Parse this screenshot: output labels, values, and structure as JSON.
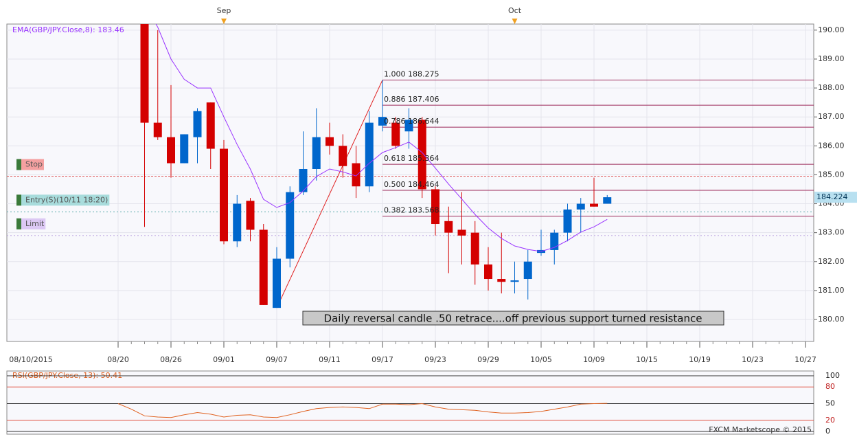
{
  "chart_data": {
    "type": "candlestick",
    "title": "EMA(GBP/JPY.Close,8): 183.46",
    "start_label": "08/10/2015",
    "categories": [
      "08/20",
      null,
      null,
      null,
      "08/26",
      null,
      null,
      null,
      "09/01",
      null,
      null,
      null,
      "09/07",
      null,
      null,
      null,
      "09/11",
      null,
      null,
      null,
      "09/17",
      null,
      null,
      null,
      "09/23",
      null,
      null,
      null,
      "09/29",
      null,
      null,
      null,
      "10/05",
      null,
      null,
      null,
      "10/09",
      null,
      null,
      null,
      "10/15",
      null,
      null,
      null,
      "10/19",
      null,
      null,
      null,
      "10/23",
      null,
      null,
      null,
      "10/27"
    ],
    "months": [
      null,
      null,
      null,
      null,
      null,
      null,
      null,
      null,
      "Sep",
      null,
      null,
      null,
      null,
      null,
      null,
      null,
      null,
      null,
      null,
      null,
      null,
      null,
      null,
      null,
      null,
      null,
      null,
      null,
      null,
      null,
      "Oct",
      null,
      null,
      null,
      null,
      null,
      null,
      null,
      null,
      null,
      null,
      null,
      null,
      null,
      null,
      null,
      null,
      null,
      null,
      null,
      null,
      null,
      null
    ],
    "ohlc": {
      "up_color": "#0066cc",
      "down_color": "#d40000",
      "open": [
        null,
        null,
        190.5,
        186.8,
        186.3,
        185.4,
        186.3,
        187.5,
        185.9,
        182.7,
        184.1,
        183.1,
        180.4,
        182.1,
        184.4,
        185.2,
        186.3,
        186.0,
        185.4,
        184.6,
        186.7,
        186.8,
        186.5,
        186.9,
        184.5,
        183.4,
        183.1,
        183.0,
        181.9,
        181.4,
        181.3,
        181.4,
        182.3,
        182.4,
        183.0,
        183.8,
        184.0,
        184.0,
        null,
        null,
        null,
        null,
        null,
        null,
        null,
        null,
        null,
        null,
        null,
        null,
        null,
        null,
        null
      ],
      "high": [
        null,
        null,
        190.8,
        190.0,
        188.1,
        186.4,
        187.3,
        187.5,
        186.2,
        184.3,
        184.2,
        183.3,
        182.5,
        184.6,
        186.5,
        187.3,
        186.8,
        186.4,
        186.0,
        187.2,
        188.275,
        187.0,
        187.3,
        187.0,
        184.6,
        183.9,
        184.4,
        183.4,
        182.5,
        183.0,
        182.0,
        182.4,
        183.1,
        183.1,
        184.0,
        184.2,
        184.9,
        184.3,
        null,
        null,
        null,
        null,
        null,
        null,
        null,
        null,
        null,
        null,
        null,
        null,
        null,
        null,
        null
      ],
      "low": [
        null,
        null,
        183.2,
        186.2,
        184.9,
        185.4,
        185.4,
        185.2,
        182.6,
        182.5,
        182.7,
        180.5,
        180.4,
        181.8,
        184.3,
        184.8,
        185.7,
        184.9,
        184.2,
        184.4,
        186.5,
        185.9,
        185.9,
        184.2,
        182.9,
        181.6,
        181.9,
        181.2,
        181.0,
        180.9,
        180.9,
        180.69,
        182.2,
        181.9,
        182.7,
        183.0,
        183.9,
        184.0,
        null,
        null,
        null,
        null,
        null,
        null,
        null,
        null,
        null,
        null,
        null,
        null,
        null,
        null,
        null
      ],
      "close": [
        null,
        null,
        186.8,
        186.3,
        185.4,
        186.4,
        187.2,
        185.9,
        182.7,
        184.0,
        183.1,
        180.5,
        182.1,
        184.4,
        185.2,
        186.3,
        186.0,
        185.3,
        184.6,
        186.8,
        187.0,
        186.0,
        186.9,
        184.5,
        183.3,
        183.0,
        182.9,
        181.9,
        181.4,
        181.3,
        181.35,
        182.0,
        182.4,
        183.0,
        183.8,
        184.0,
        183.9,
        184.224,
        null,
        null,
        null,
        null,
        null,
        null,
        null,
        null,
        null,
        null,
        null,
        null,
        null,
        null,
        null
      ]
    },
    "ema": {
      "color": "#9933ff",
      "values": [
        null,
        null,
        190.9,
        190.1,
        189.0,
        188.3,
        188.0,
        188.0,
        187.0,
        186.05,
        185.2,
        184.15,
        183.87,
        184.04,
        184.44,
        184.94,
        185.2,
        185.1,
        184.96,
        185.4,
        185.77,
        185.94,
        186.13,
        185.77,
        185.23,
        184.68,
        184.16,
        183.63,
        183.16,
        182.8,
        182.54,
        182.42,
        182.35,
        182.49,
        182.73,
        183.02,
        183.2,
        183.46,
        null,
        null,
        null,
        null,
        null,
        null,
        null,
        null,
        null,
        null,
        null,
        null,
        null,
        null,
        null
      ]
    },
    "ylim": [
      179.24,
      190.21
    ],
    "yticks": [
      {
        "value": 180,
        "label": "180.00"
      },
      {
        "value": 181,
        "label": "181.00"
      },
      {
        "value": 182,
        "label": "182.00"
      },
      {
        "value": 183,
        "label": "183.00"
      },
      {
        "value": 184,
        "label": "184.00"
      },
      {
        "value": 185,
        "label": "185.00"
      },
      {
        "value": 186,
        "label": "186.00"
      },
      {
        "value": 187,
        "label": "187.00"
      },
      {
        "value": 188,
        "label": "188.00"
      },
      {
        "value": 189,
        "label": "189.00"
      },
      {
        "value": 190,
        "label": "190.00"
      }
    ],
    "fib": {
      "color": "#9c2a5a",
      "line_color": "#e02020",
      "levels": [
        {
          "label": "1.000 188.275",
          "value": 188.275
        },
        {
          "label": "0.886 187.406",
          "value": 187.406
        },
        {
          "label": "0.786 186.644",
          "value": 186.644
        },
        {
          "label": "0.618 185.364",
          "value": 185.364
        },
        {
          "label": "0.500 184.464",
          "value": 184.464
        },
        {
          "label": "0.382 183.568",
          "value": 183.568
        }
      ]
    },
    "orders": [
      {
        "label": "Stop",
        "value": 184.95,
        "color": "#e06060",
        "fill": "#f4a0a0"
      },
      {
        "label": "Entry(S)(10/11 18:20)",
        "value": 183.72,
        "color": "#55aaaa",
        "fill": "#a8dcdc"
      },
      {
        "label": "Limit",
        "value": 182.9,
        "color": "#b9a0e0",
        "fill": "#dcc8f4"
      }
    ],
    "annotation": "Daily reversal candle .50 retrace....off previous support turned resistance",
    "footer": "FXCM Marketscope © 2015",
    "rsi": {
      "title": "RSI(GBP/JPY.Close, 13): 50.41",
      "color": "#e0601e",
      "values": [
        50,
        40,
        28,
        26,
        25,
        30,
        34,
        31,
        26,
        29,
        30,
        26,
        25,
        30,
        36,
        41,
        43,
        44,
        43,
        41,
        49,
        49,
        48,
        50,
        44,
        40,
        39,
        38,
        35,
        33,
        33,
        34,
        36,
        40,
        44,
        49,
        50,
        50.41,
        null,
        null,
        null,
        null,
        null,
        null,
        null,
        null,
        null,
        null,
        null,
        null,
        null,
        null,
        null
      ],
      "ylim": [
        0,
        100
      ],
      "yticks": [
        100,
        80,
        50,
        20,
        0
      ]
    }
  }
}
